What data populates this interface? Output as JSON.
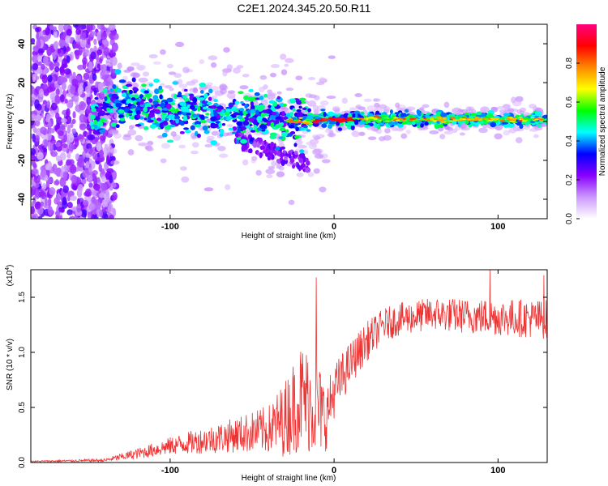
{
  "title": "C2E1.2024.345.20.50.R11",
  "chart_data": [
    {
      "type": "heatmap",
      "name": "spectrogram",
      "xlabel": "Height of straight line (km)",
      "ylabel": "Frequency (Hz)",
      "xlim": [
        -185,
        130
      ],
      "ylim": [
        -50,
        50
      ],
      "xticks": [
        -100,
        0,
        100
      ],
      "yticks": [
        -40,
        -20,
        0,
        20,
        40
      ],
      "colorbar": {
        "label": "Normalized spectral amplitude",
        "range": [
          0,
          1
        ],
        "ticks": [
          "0.0",
          "0.2",
          "0.4",
          "0.6",
          "0.8"
        ],
        "tick_values": [
          0.0,
          0.2,
          0.4,
          0.6,
          0.8
        ],
        "colors": [
          "#ffffff",
          "#cc99ff",
          "#8800ff",
          "#0000ff",
          "#00ffff",
          "#00ff00",
          "#ffff00",
          "#ff8800",
          "#ff0000",
          "#ff0080"
        ]
      },
      "description_features": {
        "scatter_region_x": [
          -185,
          -135
        ],
        "band_center_hz": [
          [
            -140,
            10
          ],
          [
            -100,
            6
          ],
          [
            -60,
            3
          ],
          [
            -20,
            0
          ],
          [
            0,
            1
          ],
          [
            130,
            1
          ]
        ]
      }
    },
    {
      "type": "line",
      "name": "snr",
      "xlabel": "Height of straight line (km)",
      "ylabel": "SNR (10 * v/v)",
      "multiplier_label": "(x10",
      "multiplier_exp": "4",
      "multiplier_close": ")",
      "xlim": [
        -185,
        130
      ],
      "ylim": [
        0,
        17500
      ],
      "xticks": [
        -100,
        0,
        100
      ],
      "yticks": [
        0,
        5000,
        10000,
        15000
      ],
      "ytick_labels": [
        "0.0",
        "0.5",
        "1.0",
        "1.5"
      ],
      "color": "#ee3333",
      "series_envelope": {
        "x": [
          -185,
          -140,
          -120,
          -100,
          -80,
          -60,
          -40,
          -30,
          -20,
          -10,
          -5,
          0,
          10,
          20,
          30,
          40,
          60,
          80,
          100,
          130
        ],
        "mean": [
          100,
          200,
          800,
          1500,
          2000,
          2500,
          3000,
          4000,
          6000,
          5000,
          4000,
          6500,
          9000,
          11000,
          12500,
          13000,
          13500,
          13300,
          13200,
          13000
        ],
        "noise": [
          60,
          150,
          500,
          800,
          1200,
          1600,
          2200,
          3500,
          5000,
          4500,
          3000,
          2500,
          2000,
          1800,
          1500,
          1500,
          1500,
          1600,
          1700,
          1800
        ]
      },
      "peaks": [
        [
          -11,
          16800
        ],
        [
          95,
          17500
        ],
        [
          128,
          17000
        ]
      ]
    }
  ]
}
